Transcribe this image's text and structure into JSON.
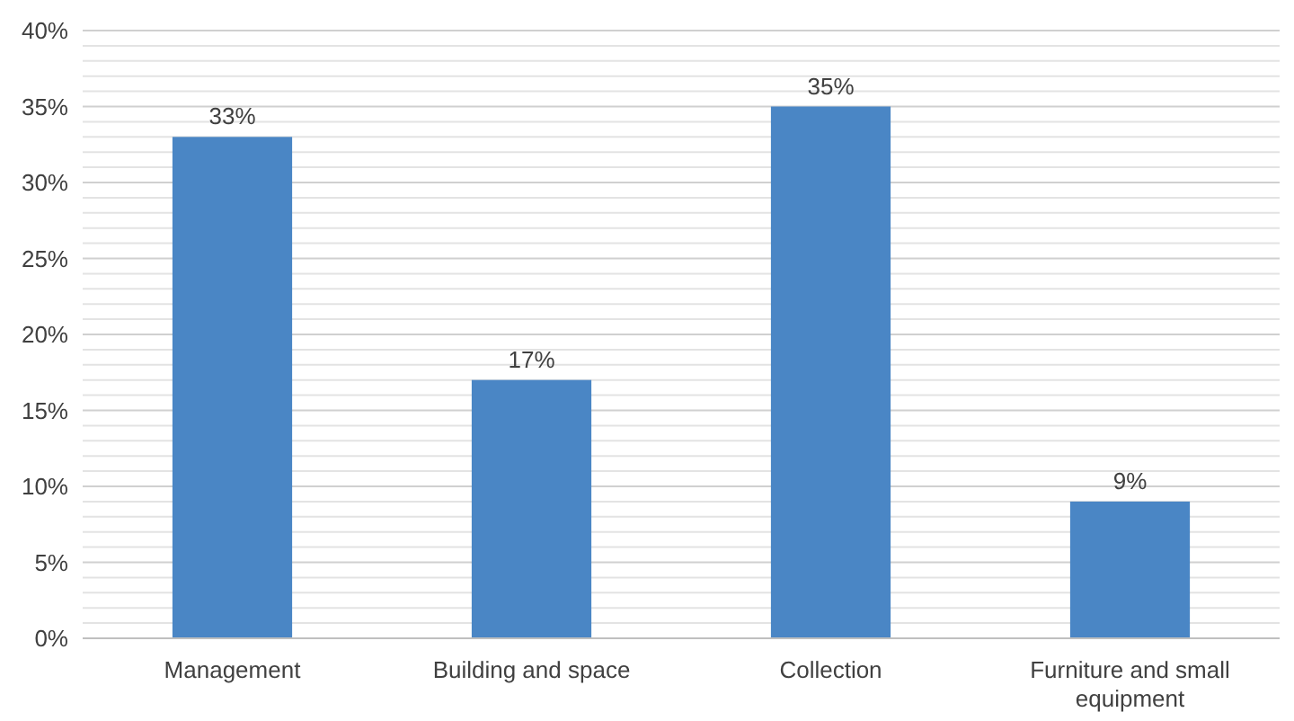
{
  "chart_data": {
    "type": "bar",
    "categories": [
      "Management",
      "Building and space",
      "Collection",
      "Furniture and small equipment"
    ],
    "values": [
      33,
      17,
      35,
      9
    ],
    "color": "#4a86c5",
    "value_labels": [
      "33%",
      "17%",
      "35%",
      "9%"
    ],
    "ylim": [
      0,
      40
    ],
    "yticks": [
      {
        "value": 0,
        "label": "0%"
      },
      {
        "value": 1,
        "label": null
      },
      {
        "value": 2,
        "label": null
      },
      {
        "value": 3,
        "label": null
      },
      {
        "value": 4,
        "label": null
      },
      {
        "value": 5,
        "label": "5%"
      },
      {
        "value": 6,
        "label": null
      },
      {
        "value": 7,
        "label": null
      },
      {
        "value": 8,
        "label": null
      },
      {
        "value": 9,
        "label": null
      },
      {
        "value": 10,
        "label": "10%"
      },
      {
        "value": 11,
        "label": null
      },
      {
        "value": 12,
        "label": null
      },
      {
        "value": 13,
        "label": null
      },
      {
        "value": 14,
        "label": null
      },
      {
        "value": 15,
        "label": "15%"
      },
      {
        "value": 16,
        "label": null
      },
      {
        "value": 17,
        "label": null
      },
      {
        "value": 18,
        "label": null
      },
      {
        "value": 19,
        "label": null
      },
      {
        "value": 20,
        "label": "20%"
      },
      {
        "value": 21,
        "label": null
      },
      {
        "value": 22,
        "label": null
      },
      {
        "value": 23,
        "label": null
      },
      {
        "value": 24,
        "label": null
      },
      {
        "value": 25,
        "label": "25%"
      },
      {
        "value": 26,
        "label": null
      },
      {
        "value": 27,
        "label": null
      },
      {
        "value": 28,
        "label": null
      },
      {
        "value": 29,
        "label": null
      },
      {
        "value": 30,
        "label": "30%"
      },
      {
        "value": 31,
        "label": null
      },
      {
        "value": 32,
        "label": null
      },
      {
        "value": 33,
        "label": null
      },
      {
        "value": 34,
        "label": null
      },
      {
        "value": 35,
        "label": "35%"
      },
      {
        "value": 36,
        "label": null
      },
      {
        "value": 37,
        "label": null
      },
      {
        "value": 38,
        "label": null
      },
      {
        "value": 39,
        "label": null
      },
      {
        "value": 40,
        "label": "40%"
      }
    ],
    "grid": true
  }
}
